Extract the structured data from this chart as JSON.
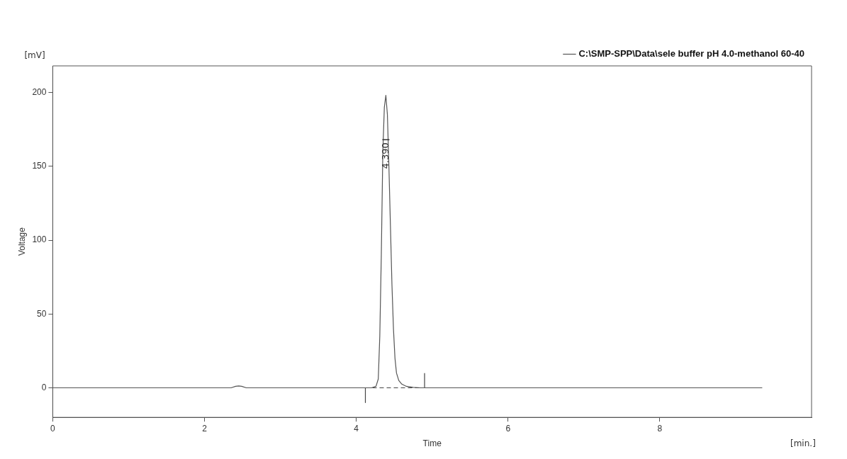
{
  "chart_data": {
    "type": "line",
    "xlabel": "Time",
    "ylabel": "Voltage",
    "xlim": [
      0,
      10
    ],
    "xticks": [
      0,
      2,
      4,
      6,
      8
    ],
    "ylim": [
      -20,
      218
    ],
    "yticks": [
      0,
      50,
      100,
      150,
      200
    ],
    "grid": false,
    "legend": "top right",
    "marker": "none",
    "series": [
      {
        "name": "C:\\SMP-SPP\\Data\\sele buffer pH 4.0-methanol 60-40",
        "color": "#555555",
        "x": [
          0,
          2.35,
          2.41,
          2.45,
          2.49,
          2.55,
          4.2,
          4.26,
          4.29,
          4.31,
          4.33,
          4.35,
          4.37,
          4.39,
          4.41,
          4.43,
          4.45,
          4.47,
          4.49,
          4.51,
          4.53,
          4.56,
          4.6,
          4.66,
          4.75,
          4.85,
          9.35
        ],
        "values": [
          0,
          0,
          1,
          1.3,
          1,
          0,
          0,
          1,
          6,
          35,
          90,
          160,
          190,
          198,
          185,
          150,
          110,
          70,
          40,
          20,
          10,
          5,
          2.5,
          1,
          0.3,
          0,
          0
        ]
      },
      {
        "color": "#444444",
        "x": [
          4.12,
          4.9
        ],
        "values": [
          0,
          0
        ],
        "line_style": "dashed"
      },
      {
        "color": "#444444",
        "x": [
          4.12,
          4.12
        ],
        "values": [
          0,
          -10
        ]
      },
      {
        "color": "#444444",
        "x": [
          4.9,
          4.9
        ],
        "values": [
          0,
          10
        ]
      }
    ],
    "annotations": [
      {
        "text": "4.390",
        "x": 4.39,
        "y": 168
      },
      "[mV]",
      "[min.]"
    ]
  }
}
